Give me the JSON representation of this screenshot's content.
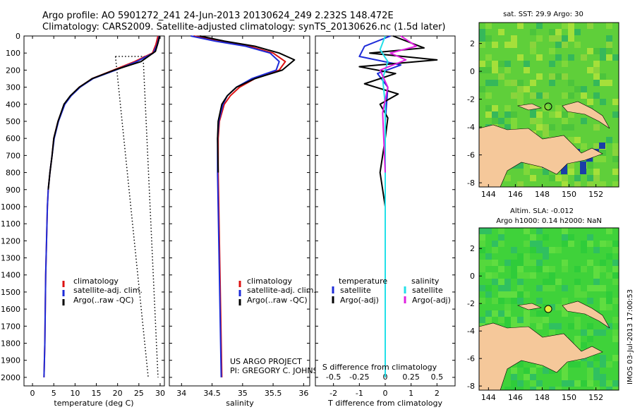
{
  "title_line1": "Argo profile: AO 5901272_241 24-Jun-2013 20130624_249 2.232S 148.472E",
  "title_line2": "Climatology: CARS2009. Satellite-adjusted climatology: synTS_20130626.nc (1.5d later)",
  "colors": {
    "climatology": "#d11",
    "satellite": "#1d2bd8",
    "argo": "#000000",
    "salinity_sat": "#22e0e8",
    "salinity_argo": "#e020e0",
    "land": "#f5c89a",
    "ocean": "#3ec83e"
  },
  "chart_data": [
    {
      "type": "line",
      "id": "temperature",
      "xlabel": "temperature (deg C)",
      "ylabel": "",
      "xlim": [
        -2,
        31
      ],
      "ylim": [
        2050,
        0
      ],
      "xticks": [
        0,
        5,
        10,
        15,
        20,
        25,
        30
      ],
      "yticks": [
        0,
        100,
        200,
        300,
        400,
        500,
        600,
        700,
        800,
        900,
        1000,
        1100,
        1200,
        1300,
        1400,
        1500,
        1600,
        1700,
        1800,
        1900,
        2000
      ],
      "series": [
        {
          "name": "climatology",
          "color": "#d11",
          "x": [
            29.5,
            29.0,
            28.2,
            24,
            19,
            14,
            11,
            9,
            7.5,
            6,
            5,
            4.6,
            4.1,
            3.7,
            3.5,
            3.3,
            3.1,
            3.0,
            2.9,
            2.8,
            2.7
          ],
          "y": [
            0,
            50,
            100,
            150,
            200,
            250,
            300,
            350,
            400,
            500,
            600,
            700,
            800,
            900,
            1000,
            1200,
            1400,
            1600,
            1800,
            1900,
            2000
          ]
        },
        {
          "name": "satellite-adj. clim.",
          "color": "#1d2bd8",
          "x": [
            29.8,
            29.3,
            28.4,
            24.5,
            19.5,
            14.2,
            11.2,
            9.1,
            7.6,
            6.1,
            5.1,
            4.6,
            4.1,
            3.7,
            3.5,
            3.3,
            3.1,
            3.0,
            2.9,
            2.8,
            2.7
          ],
          "y": [
            0,
            50,
            100,
            150,
            200,
            250,
            300,
            350,
            400,
            500,
            600,
            700,
            800,
            900,
            1000,
            1200,
            1400,
            1600,
            1800,
            1900,
            2000
          ]
        },
        {
          "name": "Argo(..raw -QC)",
          "color": "#000",
          "x": [
            29.9,
            29.5,
            28.9,
            25.5,
            19.2,
            14.0,
            11.0,
            8.9,
            7.4,
            6.0,
            5.0,
            4.6,
            4.1,
            3.7
          ],
          "y": [
            0,
            40,
            90,
            150,
            200,
            250,
            300,
            350,
            400,
            500,
            600,
            700,
            800,
            900
          ]
        }
      ],
      "dotted": [
        {
          "x": [
            19.5,
            27.2
          ],
          "y": [
            120,
            2000
          ]
        },
        {
          "x": [
            26,
            29.5
          ],
          "y": [
            120,
            2000
          ]
        },
        {
          "x": [
            19.5,
            27.5
          ],
          "y": [
            120,
            120
          ]
        }
      ],
      "legend": [
        "climatology",
        "satellite-adj. clim.",
        "Argo(..raw -QC)"
      ]
    },
    {
      "type": "line",
      "id": "salinity",
      "xlabel": "salinity",
      "ylabel": "",
      "xlim": [
        33.8,
        36.1
      ],
      "ylim": [
        2050,
        0
      ],
      "xticks": [
        34,
        34.5,
        35,
        35.5,
        36
      ],
      "series": [
        {
          "name": "climatology",
          "color": "#d11",
          "x": [
            34.2,
            34.6,
            35.1,
            35.5,
            35.7,
            35.6,
            35.2,
            34.95,
            34.8,
            34.7,
            34.62,
            34.6,
            34.6,
            34.61,
            34.62,
            34.63,
            34.64,
            34.65,
            34.66
          ],
          "y": [
            0,
            30,
            60,
            100,
            150,
            200,
            250,
            300,
            350,
            400,
            500,
            600,
            800,
            1000,
            1200,
            1400,
            1600,
            1800,
            2000
          ]
        },
        {
          "name": "satellite-adj. clim.",
          "color": "#1d2bd8",
          "x": [
            34.15,
            34.55,
            35.05,
            35.45,
            35.6,
            35.55,
            35.15,
            34.9,
            34.75,
            34.68,
            34.61,
            34.59,
            34.59,
            34.6,
            34.61,
            34.62,
            34.63,
            34.64,
            34.65
          ],
          "y": [
            0,
            30,
            60,
            100,
            150,
            200,
            250,
            300,
            350,
            400,
            500,
            600,
            800,
            1000,
            1200,
            1400,
            1600,
            1800,
            2000
          ]
        },
        {
          "name": "Argo(..raw -QC)",
          "color": "#000",
          "x": [
            34.3,
            34.7,
            35.2,
            35.6,
            35.85,
            35.65,
            35.2,
            34.9,
            34.75,
            34.66,
            34.6,
            34.59,
            34.6
          ],
          "y": [
            0,
            30,
            60,
            100,
            140,
            200,
            250,
            300,
            350,
            400,
            500,
            600,
            800
          ]
        }
      ],
      "legend": [
        "climatology",
        "satellite-adj. clim.",
        "Argo(..raw -QC)"
      ],
      "credit": [
        "US ARGO PROJECT",
        "PI: GREGORY C. JOHNSON"
      ]
    },
    {
      "type": "line",
      "id": "difference",
      "xlabel": "T difference from climatology",
      "xlabel_top": "S difference from climatology",
      "xlim": [
        -2.7,
        2.7
      ],
      "ylim": [
        2050,
        0
      ],
      "xticks": [
        -2,
        -1,
        0,
        1,
        2
      ],
      "xticks_s": [
        "-0.5",
        "-0.25",
        "0",
        "0.25",
        "0.5"
      ],
      "series": [
        {
          "name": "temperature satellite",
          "color": "#1d2bd8",
          "x": [
            0.2,
            -0.8,
            -1,
            0.6,
            -0.3,
            0.1,
            0,
            0,
            0,
            0
          ],
          "y": [
            0,
            60,
            120,
            170,
            220,
            300,
            500,
            1000,
            1500,
            2000
          ]
        },
        {
          "name": "temperature Argo(-adj)",
          "color": "#000",
          "x": [
            0.3,
            1.5,
            -0.6,
            2.0,
            -1.0,
            0.4,
            -0.8,
            0.5,
            -0.2,
            0.1,
            0,
            -0.2,
            0,
            0
          ],
          "y": [
            0,
            70,
            100,
            140,
            180,
            220,
            280,
            340,
            400,
            480,
            600,
            800,
            1000,
            1200
          ]
        },
        {
          "name": "salinity satellite",
          "color": "#22e0e8",
          "x": [
            0,
            -0.2,
            0.1,
            -0.1,
            0,
            0,
            0,
            0,
            0
          ],
          "y": [
            0,
            80,
            150,
            250,
            400,
            700,
            1200,
            1600,
            2000
          ]
        },
        {
          "name": "salinity Argo(-adj)",
          "color": "#e020e0",
          "x": [
            0.6,
            1.2,
            0.2,
            0.8,
            -0.2,
            0.1,
            -0.1,
            0
          ],
          "y": [
            0,
            60,
            100,
            140,
            200,
            300,
            450,
            800
          ]
        }
      ],
      "legend_headers": [
        "temperature",
        "salinity"
      ],
      "legend": [
        "satellite",
        "Argo(-adj)",
        "satellite",
        "Argo(-adj)"
      ]
    },
    {
      "type": "heatmap",
      "id": "sst_map",
      "title": "sat. SST: 29.9 Argo: 30",
      "xticks": [
        144,
        146,
        148,
        150,
        152
      ],
      "yticks": [
        2,
        0,
        -2,
        -4,
        -6,
        -8
      ],
      "xlim": [
        143.3,
        153.7
      ],
      "ylim": [
        -8.3,
        3.5
      ],
      "marker": {
        "lon": 148.47,
        "lat": -2.23,
        "style": "open circle"
      }
    },
    {
      "type": "heatmap",
      "id": "sla_map",
      "title_line1": "Altim. SLA: -0.012",
      "title_line2": "Argo h1000: 0.14 h2000: NaN",
      "xticks": [
        144,
        146,
        148,
        150,
        152
      ],
      "yticks": [
        2,
        0,
        -2,
        -4,
        -6,
        -8
      ],
      "xlim": [
        143.3,
        153.7
      ],
      "ylim": [
        -8.3,
        3.5
      ],
      "marker": {
        "lon": 148.47,
        "lat": -2.23,
        "style": "filled yellow circle"
      }
    }
  ],
  "watermark": "IMOS 03-Jul-2013 17:00:53"
}
